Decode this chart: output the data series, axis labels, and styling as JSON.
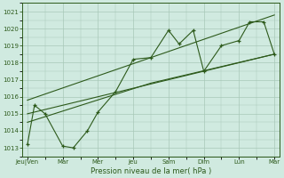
{
  "xlabel": "Pression niveau de la mer( hPa )",
  "bg_color": "#d0eae0",
  "grid_color": "#a8c8b8",
  "line_color": "#2d5a1b",
  "ylim": [
    1012.5,
    1021.5
  ],
  "yticks": [
    1013,
    1014,
    1015,
    1016,
    1017,
    1018,
    1019,
    1020,
    1021
  ],
  "x_labels": [
    "Jeu|Ven",
    "Mar",
    "Mer",
    "Jeu",
    "Sam",
    "Dim",
    "Lun",
    "Mar"
  ],
  "x_tick_positions": [
    0,
    1,
    2,
    3,
    4,
    5,
    6,
    7
  ],
  "main_line_x": [
    0,
    0.2,
    0.5,
    1.0,
    1.3,
    1.7,
    2.0,
    2.5,
    3.0,
    3.5,
    4.0,
    4.3,
    4.7,
    5.0,
    5.5,
    6.0,
    6.3,
    6.7,
    7.0
  ],
  "main_line_y": [
    1013.2,
    1015.5,
    1015.0,
    1013.1,
    1013.0,
    1014.0,
    1015.1,
    1016.3,
    1018.2,
    1018.3,
    1019.9,
    1019.1,
    1019.9,
    1017.5,
    1019.0,
    1019.3,
    1020.4,
    1020.4,
    1018.5
  ],
  "upper_line_x": [
    0,
    3.5,
    7
  ],
  "upper_line_y": [
    1015.8,
    1018.3,
    1020.8
  ],
  "lower_line_x": [
    0,
    3.5,
    7
  ],
  "lower_line_y": [
    1014.5,
    1016.8,
    1018.5
  ],
  "mid_line_x": [
    0,
    7
  ],
  "mid_line_y": [
    1015.0,
    1018.5
  ],
  "figsize": [
    3.2,
    2.0
  ],
  "dpi": 100
}
